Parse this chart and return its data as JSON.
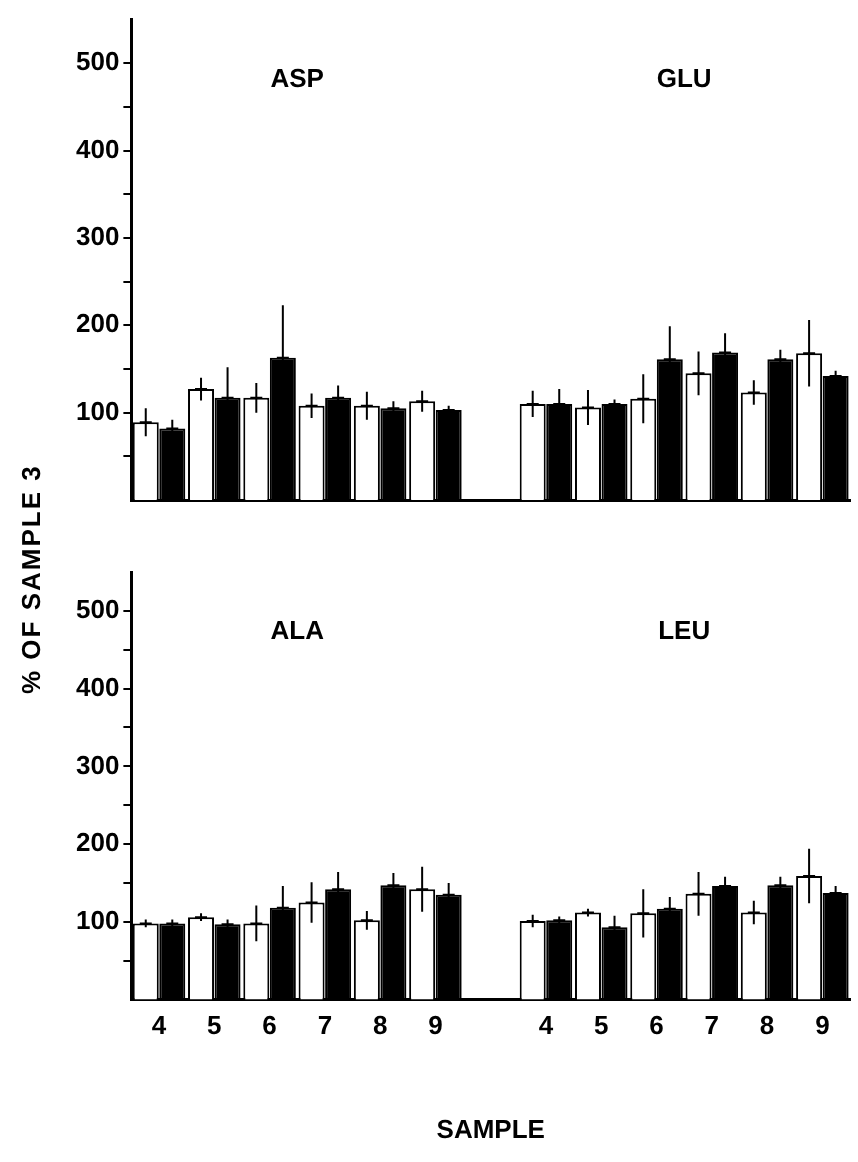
{
  "chart_data": [
    {
      "type": "bar",
      "ylabel": "% OF SAMPLE 3",
      "categories": [
        "4",
        "5",
        "6",
        "7",
        "8",
        "9",
        null,
        "4",
        "5",
        "6",
        "7",
        "8",
        "9"
      ],
      "series": [
        {
          "color": "#ffffff",
          "values": [
            89,
            127,
            117,
            108,
            108,
            113,
            null,
            110,
            106,
            116,
            145,
            123,
            168
          ],
          "errors": [
            16,
            13,
            17,
            14,
            16,
            12,
            null,
            15,
            20,
            28,
            25,
            14,
            38
          ]
        },
        {
          "color": "#000000",
          "values": [
            82,
            117,
            163,
            117,
            105,
            103,
            null,
            110,
            110,
            161,
            169,
            161,
            142
          ],
          "errors": [
            10,
            35,
            60,
            14,
            8,
            5,
            null,
            17,
            5,
            38,
            22,
            11,
            6
          ]
        }
      ],
      "ylim": [
        0,
        550
      ],
      "yticks": [
        {
          "value": 50,
          "label": null
        },
        100,
        {
          "value": 150,
          "label": null
        },
        200,
        {
          "value": 250,
          "label": null
        },
        300,
        {
          "value": 350,
          "label": null
        },
        400,
        {
          "value": 450,
          "label": null
        },
        500
      ],
      "annotations": [
        "ASP",
        "GLU"
      ],
      "tick_labels": "y"
    },
    {
      "type": "bar",
      "xlabel": "SAMPLE",
      "categories": [
        "4",
        "5",
        "6",
        "7",
        "8",
        "9",
        null,
        "4",
        "5",
        "6",
        "7",
        "8",
        "9"
      ],
      "series": [
        {
          "color": "#ffffff",
          "values": [
            98,
            106,
            98,
            125,
            102,
            142,
            null,
            101,
            112,
            111,
            136,
            112,
            159
          ],
          "errors": [
            5,
            5,
            23,
            26,
            12,
            29,
            null,
            8,
            5,
            31,
            28,
            15,
            35
          ]
        },
        {
          "color": "#000000",
          "values": [
            98,
            97,
            118,
            142,
            147,
            135,
            null,
            102,
            93,
            117,
            146,
            147,
            137
          ],
          "errors": [
            5,
            6,
            28,
            22,
            16,
            15,
            null,
            5,
            15,
            15,
            12,
            11,
            9
          ]
        }
      ],
      "ylim": [
        0,
        550
      ],
      "yticks": [
        {
          "value": 50,
          "label": null
        },
        100,
        {
          "value": 150,
          "label": null
        },
        200,
        {
          "value": 250,
          "label": null
        },
        300,
        {
          "value": 350,
          "label": null
        },
        400,
        {
          "value": 450,
          "label": null
        },
        500
      ],
      "annotations": [
        "ALA",
        "LEU"
      ]
    }
  ]
}
